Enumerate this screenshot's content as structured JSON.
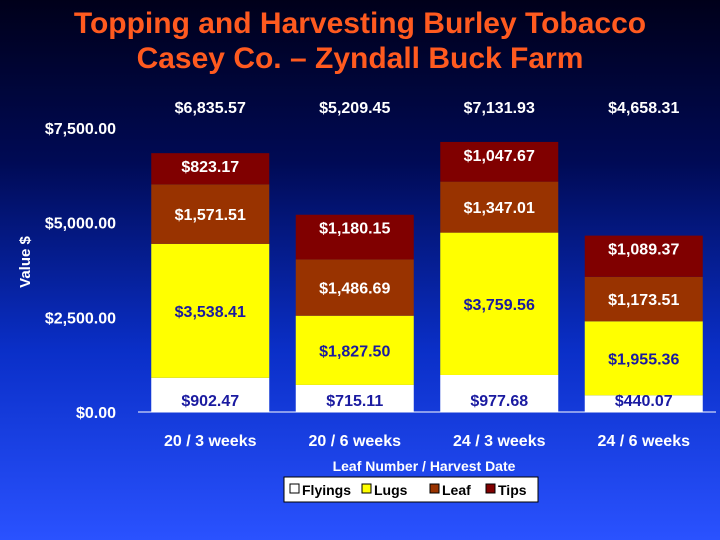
{
  "title_lines": [
    "Topping and Harvesting Burley Tobacco",
    "Casey Co. – Zyndall Buck Farm"
  ],
  "colors": {
    "Flyings": "#ffffff",
    "Lugs": "#ffff00",
    "Leaf": "#993300",
    "Tips": "#800000",
    "title": "#ff5a1f",
    "axis_text": "#ffffff",
    "legend_bg": "#ffffff"
  },
  "chart_data": {
    "type": "bar",
    "stacked": true,
    "categories": [
      "20 / 3 weeks",
      "20 / 6 weeks",
      "24 / 3 weeks",
      "24 / 6 weeks"
    ],
    "series": [
      {
        "name": "Flyings",
        "values": [
          902.47,
          715.11,
          977.68,
          440.07
        ],
        "labels": [
          "$902.47",
          "$715.11",
          "$977.68",
          "$440.07"
        ]
      },
      {
        "name": "Lugs",
        "values": [
          3538.41,
          1827.5,
          3759.56,
          1955.36
        ],
        "labels": [
          "$3,538.41",
          "$1,827.50",
          "$3,759.56",
          "$1,955.36"
        ]
      },
      {
        "name": "Leaf",
        "values": [
          1571.51,
          1486.69,
          1347.01,
          1173.51
        ],
        "labels": [
          "$1,571.51",
          "$1,486.69",
          "$1,347.01",
          "$1,173.51"
        ]
      },
      {
        "name": "Tips",
        "values": [
          823.17,
          1180.15,
          1047.67,
          1089.37
        ],
        "labels": [
          "$823.17",
          "$1,180.15",
          "$1,047.67",
          "$1,089.37"
        ]
      }
    ],
    "totals": [
      "$6,835.57",
      "$5,209.45",
      "$7,131.93",
      "$4,658.31"
    ],
    "xlabel": "Leaf Number / Harvest Date",
    "ylabel": "Value $",
    "ylim": [
      0,
      7500
    ],
    "yticks": [
      0,
      2500,
      5000,
      7500
    ],
    "ytick_labels": [
      "$0.00",
      "$2,500.00",
      "$5,000.00",
      "$7,500.00"
    ],
    "legend_position": "bottom",
    "grid": false
  }
}
